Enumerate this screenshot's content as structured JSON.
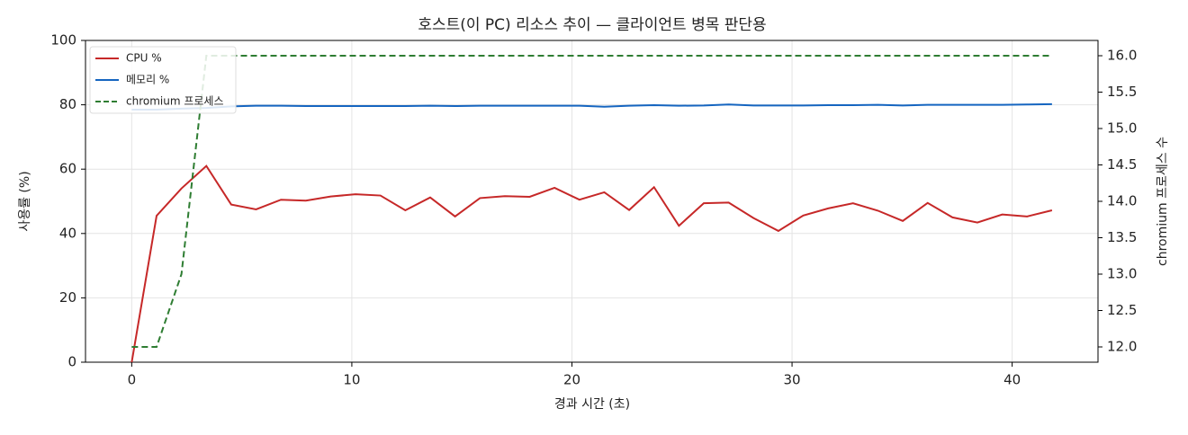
{
  "chart_data": {
    "type": "line",
    "title": "호스트(이 PC) 리소스 추이 — 클라이언트 병목 판단용",
    "xlabel": "경과 시간 (초)",
    "ylabel": "사용률 (%)",
    "y2label": "chromium 프로세스 수",
    "x": [
      0,
      1.13,
      2.26,
      3.39,
      4.52,
      5.65,
      6.78,
      7.91,
      9.04,
      10.17,
      11.3,
      12.43,
      13.56,
      14.69,
      15.82,
      16.95,
      18.08,
      19.21,
      20.34,
      21.47,
      22.6,
      23.73,
      24.86,
      25.99,
      27.12,
      28.25,
      29.38,
      30.51,
      31.64,
      32.77,
      33.9,
      35.03,
      36.16,
      37.29,
      38.42,
      39.55,
      40.68,
      41.81
    ],
    "series": [
      {
        "name": "CPU %",
        "color": "#c62828",
        "linestyle": "solid",
        "axis": "y",
        "values": [
          0,
          45.5,
          54,
          61,
          49,
          47.5,
          50.5,
          50.2,
          51.5,
          52.2,
          51.8,
          47.2,
          51.2,
          45.3,
          51,
          51.6,
          51.4,
          54.2,
          50.5,
          52.8,
          47.3,
          54.4,
          42.4,
          49.4,
          49.6,
          44.8,
          40.8,
          45.6,
          47.8,
          49.4,
          47.1,
          43.9,
          49.5,
          45,
          43.4,
          45.9,
          45.3,
          47.2
        ]
      },
      {
        "name": "메모리 %",
        "color": "#1565c0",
        "linestyle": "solid",
        "axis": "y",
        "values": [
          78.5,
          78.5,
          78.8,
          79,
          79.5,
          79.7,
          79.7,
          79.6,
          79.6,
          79.6,
          79.6,
          79.6,
          79.7,
          79.6,
          79.7,
          79.7,
          79.7,
          79.7,
          79.7,
          79.4,
          79.7,
          79.9,
          79.7,
          79.8,
          80.1,
          79.8,
          79.8,
          79.8,
          79.9,
          79.9,
          80,
          79.8,
          80,
          80,
          80,
          80,
          80.1,
          80.2
        ]
      },
      {
        "name": "chromium 프로세스",
        "color": "#2e7d32",
        "linestyle": "dashed",
        "axis": "y2",
        "values": [
          12,
          12,
          13,
          16,
          16,
          16,
          16,
          16,
          16,
          16,
          16,
          16,
          16,
          16,
          16,
          16,
          16,
          16,
          16,
          16,
          16,
          16,
          16,
          16,
          16,
          16,
          16,
          16,
          16,
          16,
          16,
          16,
          16,
          16,
          16,
          16,
          16,
          16
        ]
      }
    ],
    "xlim": [
      -2.1,
      43.9
    ],
    "xticks": [
      0,
      10,
      20,
      30,
      40
    ],
    "ylim": [
      0,
      100
    ],
    "yticks": [
      0,
      20,
      40,
      60,
      80,
      100
    ],
    "y2lim": [
      11.79,
      16.21
    ],
    "y2ticks": [
      {
        "value": 12,
        "label": "12.0"
      },
      12.5,
      {
        "value": 13,
        "label": "13.0"
      },
      13.5,
      {
        "value": 14,
        "label": "14.0"
      },
      14.5,
      {
        "value": 15,
        "label": "15.0"
      },
      15.5,
      {
        "value": 16,
        "label": "16.0"
      }
    ],
    "grid": true,
    "legend": "upper left"
  }
}
